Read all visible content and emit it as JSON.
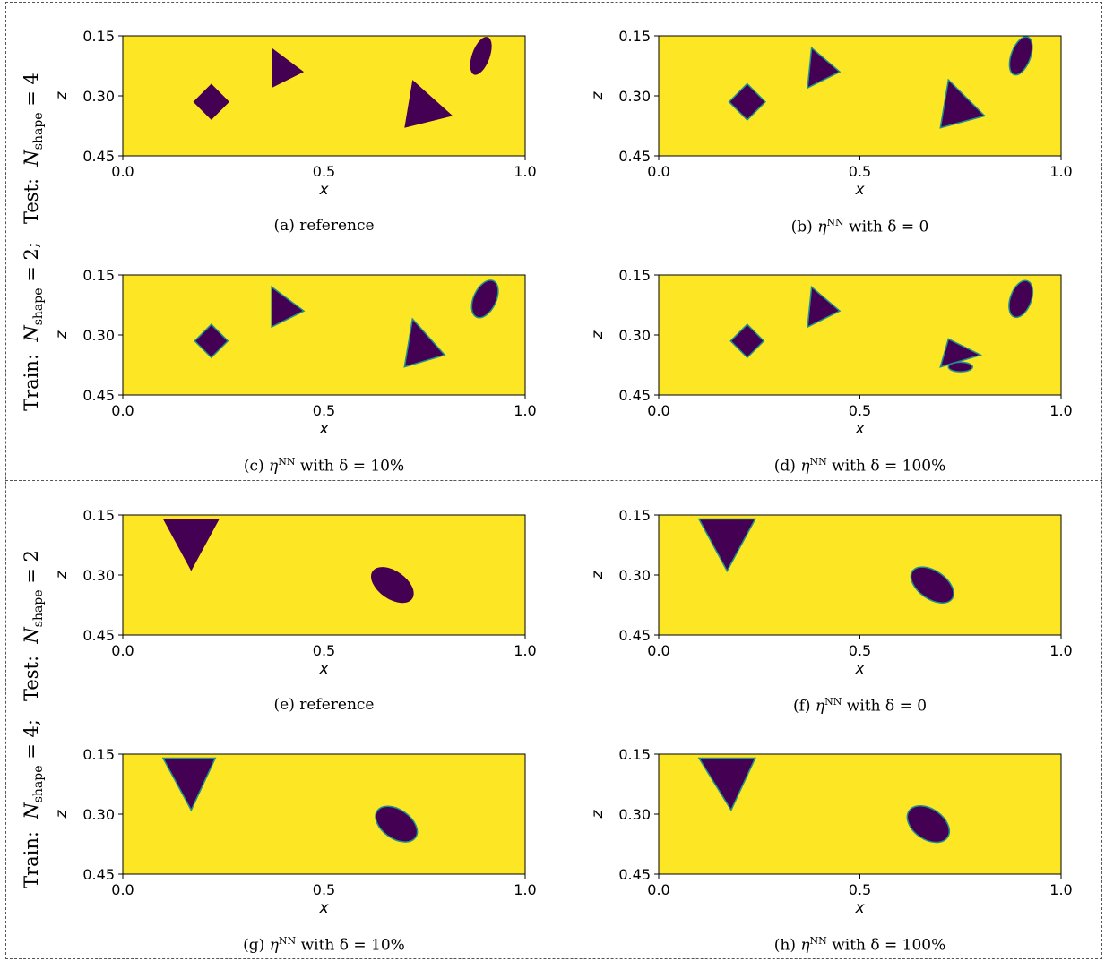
{
  "colors": {
    "background_field": "#fde725",
    "inclusion": "#440154",
    "edge": "#21908c"
  },
  "row_labels": {
    "top": {
      "prefix": "Train:",
      "between": "Test:",
      "sym": "N",
      "sub": "shape",
      "train_value": "= 2;",
      "test_value": "= 4"
    },
    "bottom": {
      "prefix": "Train:",
      "between": "Test:",
      "sym": "N",
      "sub": "shape",
      "train_value": "= 4;",
      "test_value": "= 2"
    }
  },
  "captions": [
    {
      "tag": "(a)",
      "text": "reference"
    },
    {
      "tag": "(b)",
      "text": "ηNN with δ = 0"
    },
    {
      "tag": "(c)",
      "text": "ηNN with δ = 10%"
    },
    {
      "tag": "(d)",
      "text": "ηNN with δ = 100%"
    },
    {
      "tag": "(e)",
      "text": "reference"
    },
    {
      "tag": "(f)",
      "text": "ηNN with δ = 0"
    },
    {
      "tag": "(g)",
      "text": "ηNN with δ = 10%"
    },
    {
      "tag": "(h)",
      "text": "ηNN with δ = 100%"
    }
  ],
  "axes": {
    "xlabel": "x",
    "ylabel": "z",
    "xlim": [
      0.0,
      1.0
    ],
    "ylim": [
      0.15,
      0.45
    ],
    "xticks": [
      "0.0",
      "0.5",
      "1.0"
    ],
    "yticks": [
      "0.15",
      "0.30",
      "0.45"
    ]
  },
  "chart_data": [
    {
      "type": "heatmap",
      "panel": "a",
      "title": "",
      "xlabel": "x",
      "ylabel": "z",
      "xlim": [
        0,
        1
      ],
      "ylim": [
        0.15,
        0.45
      ],
      "y_inverted": true,
      "shapes": [
        {
          "kind": "square",
          "center": [
            0.22,
            0.315
          ],
          "size": 0.06
        },
        {
          "kind": "triangle",
          "points": [
            [
              0.37,
              0.18
            ],
            [
              0.45,
              0.24
            ],
            [
              0.37,
              0.28
            ]
          ]
        },
        {
          "kind": "triangle",
          "points": [
            [
              0.72,
              0.26
            ],
            [
              0.82,
              0.35
            ],
            [
              0.7,
              0.38
            ]
          ]
        },
        {
          "kind": "ellipse",
          "center": [
            0.89,
            0.2
          ],
          "r": [
            0.022,
            0.05
          ],
          "rotation": 20
        }
      ]
    },
    {
      "type": "heatmap",
      "panel": "b",
      "title": "",
      "xlabel": "x",
      "ylabel": "z",
      "xlim": [
        0,
        1
      ],
      "ylim": [
        0.15,
        0.45
      ],
      "y_inverted": true,
      "shapes": [
        {
          "kind": "square",
          "center": [
            0.22,
            0.315
          ],
          "size": 0.06
        },
        {
          "kind": "triangle",
          "points": [
            [
              0.38,
              0.18
            ],
            [
              0.45,
              0.24
            ],
            [
              0.37,
              0.28
            ]
          ]
        },
        {
          "kind": "triangle",
          "points": [
            [
              0.72,
              0.26
            ],
            [
              0.81,
              0.35
            ],
            [
              0.7,
              0.38
            ]
          ]
        },
        {
          "kind": "ellipse",
          "center": [
            0.9,
            0.2
          ],
          "r": [
            0.024,
            0.05
          ],
          "rotation": 20
        }
      ]
    },
    {
      "type": "heatmap",
      "panel": "c",
      "title": "",
      "xlabel": "x",
      "ylabel": "z",
      "xlim": [
        0,
        1
      ],
      "ylim": [
        0.15,
        0.45
      ],
      "y_inverted": true,
      "shapes": [
        {
          "kind": "square",
          "center": [
            0.22,
            0.315
          ],
          "size": 0.055
        },
        {
          "kind": "triangle",
          "points": [
            [
              0.37,
              0.18
            ],
            [
              0.45,
              0.24
            ],
            [
              0.37,
              0.28
            ]
          ]
        },
        {
          "kind": "triangle",
          "points": [
            [
              0.72,
              0.26
            ],
            [
              0.8,
              0.35
            ],
            [
              0.7,
              0.38
            ]
          ]
        },
        {
          "kind": "ellipse",
          "center": [
            0.9,
            0.21
          ],
          "r": [
            0.028,
            0.05
          ],
          "rotation": 25
        }
      ]
    },
    {
      "type": "heatmap",
      "panel": "d",
      "title": "",
      "xlabel": "x",
      "ylabel": "z",
      "xlim": [
        0,
        1
      ],
      "ylim": [
        0.15,
        0.45
      ],
      "y_inverted": true,
      "shapes": [
        {
          "kind": "square",
          "center": [
            0.22,
            0.315
          ],
          "size": 0.055
        },
        {
          "kind": "triangle",
          "points": [
            [
              0.38,
              0.18
            ],
            [
              0.45,
              0.24
            ],
            [
              0.37,
              0.28
            ]
          ]
        },
        {
          "kind": "triangle",
          "points": [
            [
              0.72,
              0.31
            ],
            [
              0.8,
              0.35
            ],
            [
              0.7,
              0.38
            ]
          ]
        },
        {
          "kind": "ellipse",
          "center": [
            0.75,
            0.38
          ],
          "r": [
            0.03,
            0.012
          ],
          "rotation": 0
        },
        {
          "kind": "ellipse",
          "center": [
            0.9,
            0.21
          ],
          "r": [
            0.026,
            0.048
          ],
          "rotation": 20
        }
      ]
    },
    {
      "type": "heatmap",
      "panel": "e",
      "title": "",
      "xlabel": "x",
      "ylabel": "z",
      "xlim": [
        0,
        1
      ],
      "ylim": [
        0.15,
        0.45
      ],
      "y_inverted": true,
      "shapes": [
        {
          "kind": "triangle",
          "points": [
            [
              0.1,
              0.16
            ],
            [
              0.24,
              0.16
            ],
            [
              0.17,
              0.29
            ]
          ]
        },
        {
          "kind": "ellipse",
          "center": [
            0.67,
            0.325
          ],
          "r": [
            0.06,
            0.035
          ],
          "rotation": 35
        }
      ]
    },
    {
      "type": "heatmap",
      "panel": "f",
      "title": "",
      "xlabel": "x",
      "ylabel": "z",
      "xlim": [
        0,
        1
      ],
      "ylim": [
        0.15,
        0.45
      ],
      "y_inverted": true,
      "shapes": [
        {
          "kind": "triangle",
          "points": [
            [
              0.1,
              0.16
            ],
            [
              0.24,
              0.16
            ],
            [
              0.17,
              0.29
            ]
          ]
        },
        {
          "kind": "ellipse",
          "center": [
            0.68,
            0.325
          ],
          "r": [
            0.06,
            0.035
          ],
          "rotation": 35
        }
      ]
    },
    {
      "type": "heatmap",
      "panel": "g",
      "title": "",
      "xlabel": "x",
      "ylabel": "z",
      "xlim": [
        0,
        1
      ],
      "ylim": [
        0.15,
        0.45
      ],
      "y_inverted": true,
      "shapes": [
        {
          "kind": "triangle",
          "points": [
            [
              0.1,
              0.16
            ],
            [
              0.23,
              0.16
            ],
            [
              0.17,
              0.29
            ]
          ]
        },
        {
          "kind": "ellipse",
          "center": [
            0.68,
            0.325
          ],
          "r": [
            0.058,
            0.036
          ],
          "rotation": 35
        }
      ]
    },
    {
      "type": "heatmap",
      "panel": "h",
      "title": "",
      "xlabel": "x",
      "ylabel": "z",
      "xlim": [
        0,
        1
      ],
      "ylim": [
        0.15,
        0.45
      ],
      "y_inverted": true,
      "shapes": [
        {
          "kind": "triangle",
          "points": [
            [
              0.1,
              0.16
            ],
            [
              0.24,
              0.16
            ],
            [
              0.18,
              0.29
            ]
          ]
        },
        {
          "kind": "ellipse",
          "center": [
            0.67,
            0.325
          ],
          "r": [
            0.058,
            0.038
          ],
          "rotation": 35
        }
      ]
    }
  ]
}
